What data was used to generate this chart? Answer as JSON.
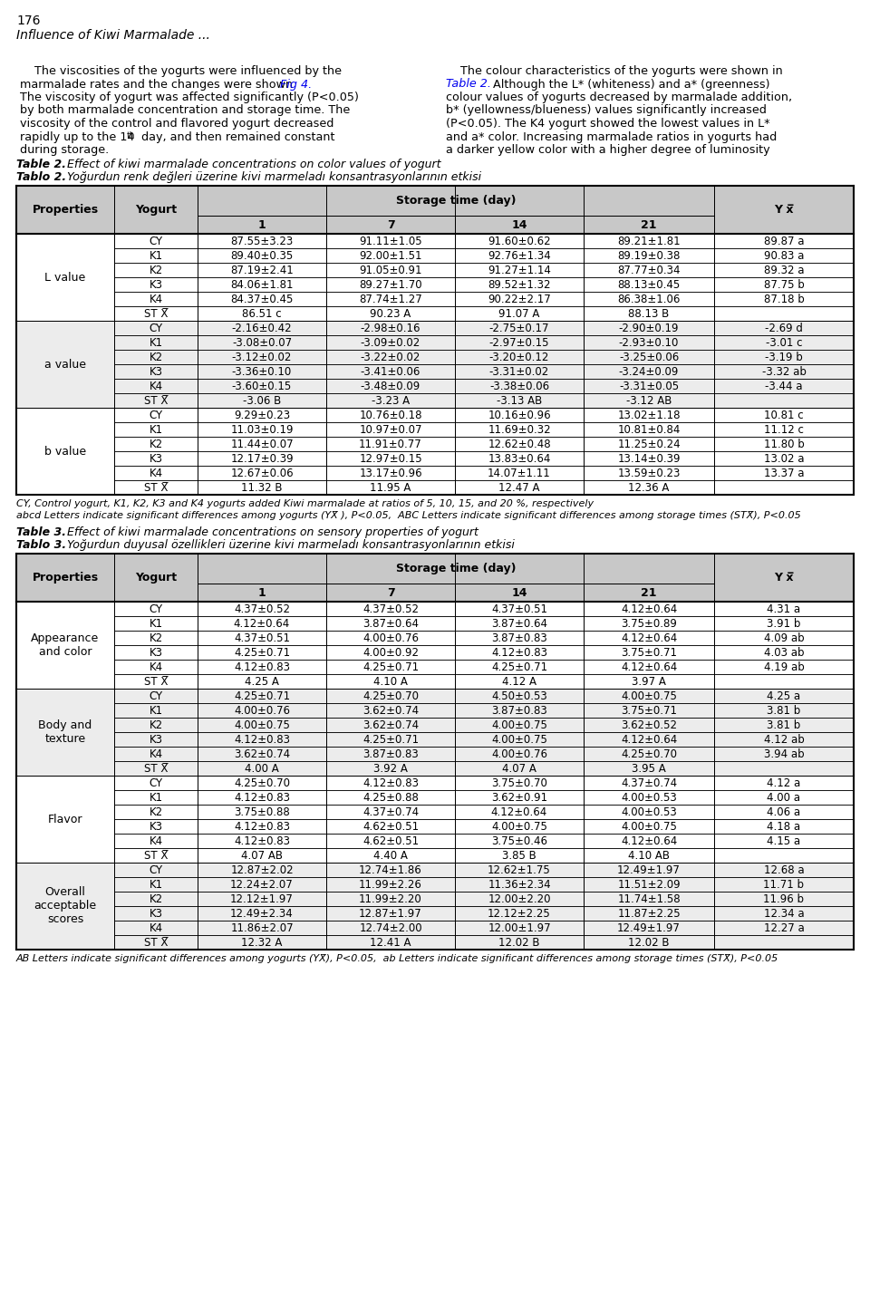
{
  "page_number": "176",
  "header_italic": "Influence of Kiwi Marmalade ...",
  "table2_title_en_bold": "Table 2.",
  "table2_title_en_rest": " Effect of kiwi marmalade concentrations on color values of yogurt",
  "table2_title_tr_bold": "Tablo 2.",
  "table2_title_tr_rest": " Yoğurdun renk değleri üzerine kivi marmeladı konsantrasyonlarının etkisi",
  "table2_header_props": "Properties",
  "table2_header_yogurt": "Yogurt",
  "table2_header_storage": "Storage time (day)",
  "table2_header_yx": "Y x̅",
  "table2_days": [
    "1",
    "7",
    "14",
    "21"
  ],
  "table2_rows": [
    {
      "property": "L value",
      "yogurts": [
        "CY",
        "K1",
        "K2",
        "K3",
        "K4",
        "ST X̅"
      ],
      "d1": [
        "87.55±3.23",
        "89.40±0.35",
        "87.19±2.41",
        "84.06±1.81",
        "84.37±0.45",
        "86.51 c"
      ],
      "d7": [
        "91.11±1.05",
        "92.00±1.51",
        "91.05±0.91",
        "89.27±1.70",
        "87.74±1.27",
        "90.23 A"
      ],
      "d14": [
        "91.60±0.62",
        "92.76±1.34",
        "91.27±1.14",
        "89.52±1.32",
        "90.22±2.17",
        "91.07 A"
      ],
      "d21": [
        "89.21±1.81",
        "89.19±0.38",
        "87.77±0.34",
        "88.13±0.45",
        "86.38±1.06",
        "88.13 B"
      ],
      "yx": [
        "89.87 a",
        "90.83 a",
        "89.32 a",
        "87.75 b",
        "87.18 b",
        ""
      ]
    },
    {
      "property": "a value",
      "yogurts": [
        "CY",
        "K1",
        "K2",
        "K3",
        "K4",
        "ST X̅"
      ],
      "d1": [
        "-2.16±0.42",
        "-3.08±0.07",
        "-3.12±0.02",
        "-3.36±0.10",
        "-3.60±0.15",
        "-3.06 B"
      ],
      "d7": [
        "-2.98±0.16",
        "-3.09±0.02",
        "-3.22±0.02",
        "-3.41±0.06",
        "-3.48±0.09",
        "-3.23 A"
      ],
      "d14": [
        "-2.75±0.17",
        "-2.97±0.15",
        "-3.20±0.12",
        "-3.31±0.02",
        "-3.38±0.06",
        "-3.13 AB"
      ],
      "d21": [
        "-2.90±0.19",
        "-2.93±0.10",
        "-3.25±0.06",
        "-3.24±0.09",
        "-3.31±0.05",
        "-3.12 AB"
      ],
      "yx": [
        "-2.69 d",
        "-3.01 c",
        "-3.19 b",
        "-3.32 ab",
        "-3.44 a",
        ""
      ]
    },
    {
      "property": "b value",
      "yogurts": [
        "CY",
        "K1",
        "K2",
        "K3",
        "K4",
        "ST X̅"
      ],
      "d1": [
        "9.29±0.23",
        "11.03±0.19",
        "11.44±0.07",
        "12.17±0.39",
        "12.67±0.06",
        "11.32 B"
      ],
      "d7": [
        "10.76±0.18",
        "10.97±0.07",
        "11.91±0.77",
        "12.97±0.15",
        "13.17±0.96",
        "11.95 A"
      ],
      "d14": [
        "10.16±0.96",
        "11.69±0.32",
        "12.62±0.48",
        "13.83±0.64",
        "14.07±1.11",
        "12.47 A"
      ],
      "d21": [
        "13.02±1.18",
        "10.81±0.84",
        "11.25±0.24",
        "13.14±0.39",
        "13.59±0.23",
        "12.36 A"
      ],
      "yx": [
        "10.81 c",
        "11.12 c",
        "11.80 b",
        "13.02 a",
        "13.37 a",
        ""
      ]
    }
  ],
  "table2_footnote1": "CY, Control yogurt, K1, K2, K3 and K4 yogurts added Kiwi marmalade at ratios of 5, 10, 15, and 20 %, respectively",
  "table2_footnote2": "abcd Letters indicate significant differences among yogurts (YX̅ ), P<0.05,  ABC Letters indicate significant differences among storage times (STX̅), P<0.05",
  "table3_title_en_bold": "Table 3.",
  "table3_title_en_rest": " Effect of kiwi marmalade concentrations on sensory properties of yogurt",
  "table3_title_tr_bold": "Tablo 3.",
  "table3_title_tr_rest": " Yoğurdun duyusal özellikleri üzerine kivi marmeladı konsantrasyonlarının etkisi",
  "table3_rows": [
    {
      "property": "Appearance\nand color",
      "yogurts": [
        "CY",
        "K1",
        "K2",
        "K3",
        "K4",
        "ST X̅"
      ],
      "d1": [
        "4.37±0.52",
        "4.12±0.64",
        "4.37±0.51",
        "4.25±0.71",
        "4.12±0.83",
        "4.25 A"
      ],
      "d7": [
        "4.37±0.52",
        "3.87±0.64",
        "4.00±0.76",
        "4.00±0.92",
        "4.25±0.71",
        "4.10 A"
      ],
      "d14": [
        "4.37±0.51",
        "3.87±0.64",
        "3.87±0.83",
        "4.12±0.83",
        "4.25±0.71",
        "4.12 A"
      ],
      "d21": [
        "4.12±0.64",
        "3.75±0.89",
        "4.12±0.64",
        "3.75±0.71",
        "4.12±0.64",
        "3.97 A"
      ],
      "yx": [
        "4.31 a",
        "3.91 b",
        "4.09 ab",
        "4.03 ab",
        "4.19 ab",
        ""
      ]
    },
    {
      "property": "Body and\ntexture",
      "yogurts": [
        "CY",
        "K1",
        "K2",
        "K3",
        "K4",
        "ST X̅"
      ],
      "d1": [
        "4.25±0.71",
        "4.00±0.76",
        "4.00±0.75",
        "4.12±0.83",
        "3.62±0.74",
        "4.00 A"
      ],
      "d7": [
        "4.25±0.70",
        "3.62±0.74",
        "3.62±0.74",
        "4.25±0.71",
        "3.87±0.83",
        "3.92 A"
      ],
      "d14": [
        "4.50±0.53",
        "3.87±0.83",
        "4.00±0.75",
        "4.00±0.75",
        "4.00±0.76",
        "4.07 A"
      ],
      "d21": [
        "4.00±0.75",
        "3.75±0.71",
        "3.62±0.52",
        "4.12±0.64",
        "4.25±0.70",
        "3.95 A"
      ],
      "yx": [
        "4.25 a",
        "3.81 b",
        "3.81 b",
        "4.12 ab",
        "3.94 ab",
        ""
      ]
    },
    {
      "property": "Flavor",
      "yogurts": [
        "CY",
        "K1",
        "K2",
        "K3",
        "K4",
        "ST X̅"
      ],
      "d1": [
        "4.25±0.70",
        "4.12±0.83",
        "3.75±0.88",
        "4.12±0.83",
        "4.12±0.83",
        "4.07 AB"
      ],
      "d7": [
        "4.12±0.83",
        "4.25±0.88",
        "4.37±0.74",
        "4.62±0.51",
        "4.62±0.51",
        "4.40 A"
      ],
      "d14": [
        "3.75±0.70",
        "3.62±0.91",
        "4.12±0.64",
        "4.00±0.75",
        "3.75±0.46",
        "3.85 B"
      ],
      "d21": [
        "4.37±0.74",
        "4.00±0.53",
        "4.00±0.53",
        "4.00±0.75",
        "4.12±0.64",
        "4.10 AB"
      ],
      "yx": [
        "4.12 a",
        "4.00 a",
        "4.06 a",
        "4.18 a",
        "4.15 a",
        ""
      ]
    },
    {
      "property": "Overall\nacceptable\nscores",
      "yogurts": [
        "CY",
        "K1",
        "K2",
        "K3",
        "K4",
        "ST X̅"
      ],
      "d1": [
        "12.87±2.02",
        "12.24±2.07",
        "12.12±1.97",
        "12.49±2.34",
        "11.86±2.07",
        "12.32 A"
      ],
      "d7": [
        "12.74±1.86",
        "11.99±2.26",
        "11.99±2.20",
        "12.87±1.97",
        "12.74±2.00",
        "12.41 A"
      ],
      "d14": [
        "12.62±1.75",
        "11.36±2.34",
        "12.00±2.20",
        "12.12±2.25",
        "12.00±1.97",
        "12.02 B"
      ],
      "d21": [
        "12.49±1.97",
        "11.51±2.09",
        "11.74±1.58",
        "11.87±2.25",
        "12.49±1.97",
        "12.02 B"
      ],
      "yx": [
        "12.68 a",
        "11.71 b",
        "11.96 b",
        "12.34 a",
        "12.27 a",
        ""
      ]
    }
  ],
  "table3_footnote": "AB Letters indicate significant differences among yogurts (YX̅), P<0.05,  ab Letters indicate significant differences among storage times (STX̅), P<0.05",
  "link_color": "#0000EE",
  "header_bg": "#C8C8C8",
  "row_bg_alt": "#ECECEC",
  "row_bg_white": "#FFFFFF"
}
